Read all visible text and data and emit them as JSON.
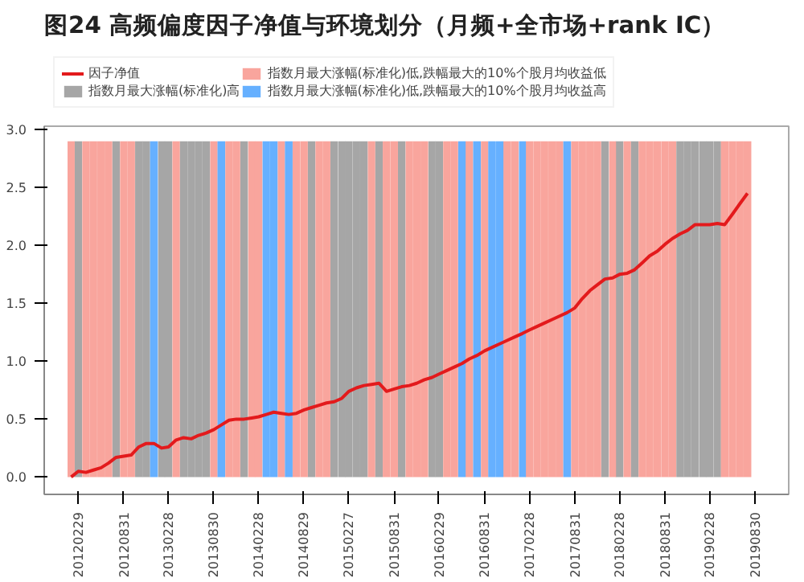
{
  "chart_data": {
    "type": "bar",
    "title": "图24 高频偏度因子净值与环境划分（月频+全市场+rank IC）",
    "x": [
      "2012-02",
      "2012-03",
      "2012-04",
      "2012-05",
      "2012-06",
      "2012-07",
      "2012-08",
      "2012-09",
      "2012-10",
      "2012-11",
      "2012-12",
      "2013-01",
      "2013-02",
      "2013-03",
      "2013-04",
      "2013-05",
      "2013-06",
      "2013-07",
      "2013-08",
      "2013-09",
      "2013-10",
      "2013-11",
      "2013-12",
      "2014-01",
      "2014-02",
      "2014-03",
      "2014-04",
      "2014-05",
      "2014-06",
      "2014-07",
      "2014-08",
      "2014-09",
      "2014-10",
      "2014-11",
      "2014-12",
      "2015-01",
      "2015-02",
      "2015-03",
      "2015-04",
      "2015-05",
      "2015-06",
      "2015-07",
      "2015-08",
      "2015-09",
      "2015-10",
      "2015-11",
      "2015-12",
      "2016-01",
      "2016-02",
      "2016-03",
      "2016-04",
      "2016-05",
      "2016-06",
      "2016-07",
      "2016-08",
      "2016-09",
      "2016-10",
      "2016-11",
      "2016-12",
      "2017-01",
      "2017-02",
      "2017-03",
      "2017-04",
      "2017-05",
      "2017-06",
      "2017-07",
      "2017-08",
      "2017-09",
      "2017-10",
      "2017-11",
      "2017-12",
      "2018-01",
      "2018-02",
      "2018-03",
      "2018-04",
      "2018-05",
      "2018-06",
      "2018-07",
      "2018-08",
      "2018-09",
      "2018-10",
      "2018-11",
      "2018-12",
      "2019-01",
      "2019-02",
      "2019-03",
      "2019-04",
      "2019-05",
      "2019-06",
      "2019-07",
      "2019-08"
    ],
    "series": [
      {
        "type": "line",
        "name": "因子净值",
        "color": "#e31a1c",
        "values": [
          0.0,
          0.05,
          0.04,
          0.06,
          0.08,
          0.12,
          0.17,
          0.18,
          0.19,
          0.26,
          0.29,
          0.29,
          0.25,
          0.26,
          0.32,
          0.34,
          0.33,
          0.36,
          0.38,
          0.41,
          0.45,
          0.49,
          0.5,
          0.5,
          0.51,
          0.52,
          0.54,
          0.56,
          0.55,
          0.54,
          0.55,
          0.58,
          0.6,
          0.62,
          0.64,
          0.65,
          0.68,
          0.74,
          0.77,
          0.79,
          0.8,
          0.81,
          0.74,
          0.76,
          0.78,
          0.79,
          0.81,
          0.84,
          0.86,
          0.89,
          0.92,
          0.95,
          0.98,
          1.02,
          1.05,
          1.09,
          1.12,
          1.15,
          1.18,
          1.21,
          1.24,
          1.27,
          1.3,
          1.33,
          1.36,
          1.39,
          1.42,
          1.46,
          1.54,
          1.61,
          1.66,
          1.71,
          1.72,
          1.75,
          1.76,
          1.79,
          1.85,
          1.91,
          1.95,
          2.01,
          2.06,
          2.1,
          2.13,
          2.18,
          2.18,
          2.18,
          2.19,
          2.18,
          2.27,
          2.36,
          2.45
        ]
      },
      {
        "name": "指数月最大涨幅(标准化)高",
        "color": "#a6a6a6",
        "values": [
          null,
          2.9,
          null,
          null,
          null,
          null,
          2.9,
          null,
          null,
          2.9,
          2.9,
          null,
          2.9,
          2.9,
          null,
          2.9,
          2.9,
          2.9,
          2.9,
          null,
          null,
          null,
          null,
          2.9,
          null,
          null,
          null,
          null,
          null,
          null,
          null,
          null,
          2.9,
          null,
          null,
          2.9,
          2.9,
          2.9,
          2.9,
          2.9,
          null,
          2.9,
          null,
          null,
          2.9,
          null,
          null,
          null,
          2.9,
          2.9,
          null,
          null,
          null,
          null,
          null,
          null,
          null,
          null,
          null,
          null,
          null,
          null,
          null,
          null,
          null,
          null,
          null,
          null,
          null,
          null,
          null,
          2.9,
          null,
          2.9,
          null,
          2.9,
          null,
          null,
          null,
          null,
          null,
          2.9,
          2.9,
          2.9,
          2.9,
          2.9,
          2.9,
          null,
          null,
          null,
          null
        ]
      },
      {
        "name": "指数月最大涨幅(标准化)低,跌幅最大的10%个股月均收益低",
        "color": "#f9a59d",
        "values": [
          2.9,
          null,
          2.9,
          2.9,
          2.9,
          2.9,
          null,
          2.9,
          2.9,
          null,
          null,
          null,
          null,
          null,
          2.9,
          null,
          null,
          null,
          null,
          2.9,
          null,
          2.9,
          2.9,
          null,
          2.9,
          2.9,
          null,
          null,
          2.9,
          null,
          2.9,
          2.9,
          null,
          2.9,
          2.9,
          null,
          null,
          null,
          null,
          null,
          2.9,
          null,
          2.9,
          2.9,
          null,
          2.9,
          2.9,
          2.9,
          null,
          null,
          2.9,
          2.9,
          null,
          2.9,
          null,
          2.9,
          null,
          null,
          2.9,
          2.9,
          null,
          2.9,
          2.9,
          2.9,
          2.9,
          2.9,
          null,
          2.9,
          2.9,
          2.9,
          2.9,
          null,
          2.9,
          null,
          2.9,
          null,
          2.9,
          2.9,
          2.9,
          2.9,
          2.9,
          null,
          null,
          null,
          null,
          null,
          null,
          2.9,
          2.9,
          2.9,
          2.9
        ]
      },
      {
        "name": "指数月最大涨幅(标准化)低,跌幅最大的10%个股月均收益高",
        "color": "#66b0ff",
        "values": [
          null,
          null,
          null,
          null,
          null,
          null,
          null,
          null,
          null,
          null,
          null,
          2.9,
          null,
          null,
          null,
          null,
          null,
          null,
          null,
          null,
          2.9,
          null,
          null,
          null,
          null,
          null,
          2.9,
          2.9,
          null,
          2.9,
          null,
          null,
          null,
          null,
          null,
          null,
          null,
          null,
          null,
          null,
          null,
          null,
          null,
          null,
          null,
          null,
          null,
          null,
          null,
          null,
          null,
          null,
          2.9,
          null,
          2.9,
          null,
          2.9,
          2.9,
          null,
          null,
          2.9,
          null,
          null,
          null,
          null,
          null,
          2.9,
          null,
          null,
          null,
          null,
          null,
          null,
          null,
          null,
          null,
          null,
          null,
          null,
          null,
          null,
          null,
          null,
          null,
          null,
          null,
          null,
          null,
          null,
          null,
          null
        ]
      }
    ],
    "xlim": [
      "2011-10-15",
      "2020-01-15"
    ],
    "xticks": [
      {
        "value": "2012-02-29",
        "label": "20120229"
      },
      {
        "value": "2012-08-31",
        "label": "20120831"
      },
      {
        "value": "2013-02-28",
        "label": "20130228"
      },
      {
        "value": "2013-08-30",
        "label": "20130830"
      },
      {
        "value": "2014-02-28",
        "label": "20140228"
      },
      {
        "value": "2014-08-29",
        "label": "20140829"
      },
      {
        "value": "2015-02-27",
        "label": "20150227"
      },
      {
        "value": "2015-08-31",
        "label": "20150831"
      },
      {
        "value": "2016-02-29",
        "label": "20160229"
      },
      {
        "value": "2016-08-31",
        "label": "20160831"
      },
      {
        "value": "2017-02-28",
        "label": "20170228"
      },
      {
        "value": "2017-08-31",
        "label": "20170831"
      },
      {
        "value": "2018-02-28",
        "label": "20180228"
      },
      {
        "value": "2018-08-31",
        "label": "20180831"
      },
      {
        "value": "2019-02-28",
        "label": "20190228"
      },
      {
        "value": "2019-08-30",
        "label": "20190830"
      }
    ],
    "ylim": [
      -0.15,
      3.03
    ],
    "yticks": [
      {
        "value": 0,
        "label": "0.0"
      },
      {
        "value": 0.5,
        "label": "0.5"
      },
      {
        "value": 1,
        "label": "1.0"
      },
      {
        "value": 1.5,
        "label": "1.5"
      },
      {
        "value": 2,
        "label": "2.0"
      },
      {
        "value": 2.5,
        "label": "2.5"
      },
      {
        "value": 3,
        "label": "3.0"
      }
    ],
    "legend": "top"
  }
}
